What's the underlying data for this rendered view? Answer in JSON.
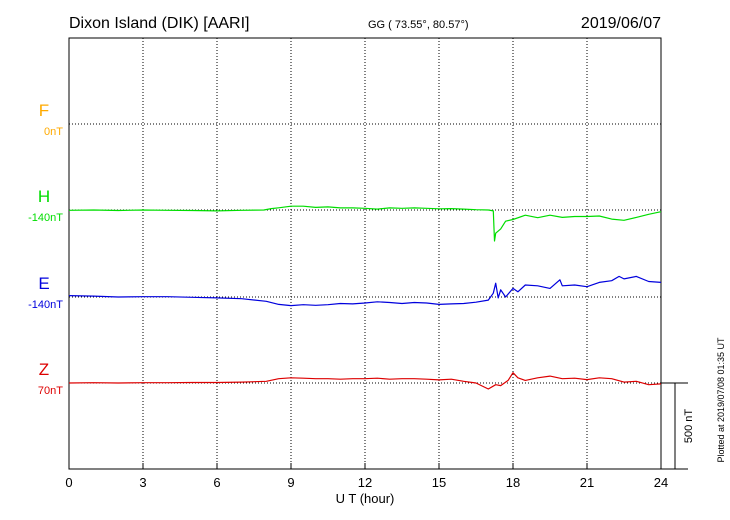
{
  "header": {
    "station": "Dixon Island (DIK)  [AARI]",
    "coords": "GG ( 73.55°,  80.57°)",
    "date": "2019/06/07"
  },
  "plotted_note": "Plotted at 2019/07/08 01:35 UT",
  "scale_label": "500 nT",
  "chart_data": {
    "type": "line",
    "xlabel": "U T (hour)",
    "xlim": [
      0,
      24
    ],
    "xticks": [
      "0",
      "3",
      "6",
      "9",
      "12",
      "15",
      "18",
      "21",
      "24"
    ],
    "scale_bar_nT": 500,
    "series": [
      {
        "name": "F",
        "baseline_label": "0nT",
        "color": "#ffaa00",
        "x": [],
        "y": []
      },
      {
        "name": "H",
        "baseline_label": "-140nT",
        "color": "#00dd00",
        "x": [
          0,
          1,
          2,
          3,
          4,
          5,
          6,
          7,
          7.9,
          8.2,
          8.5,
          9,
          9.5,
          10,
          10.5,
          11,
          11.5,
          12,
          12.5,
          13,
          13.5,
          14,
          14.5,
          15,
          15.5,
          16,
          16.5,
          17,
          17.2,
          17.25,
          17.3,
          17.5,
          17.7,
          18,
          18.5,
          19,
          19.5,
          20,
          20.5,
          21,
          21.5,
          22,
          22.5,
          23,
          23.5,
          24
        ],
        "y": [
          -142,
          -140,
          -143,
          -140,
          -142,
          -143,
          -145,
          -142,
          -140,
          -132,
          -127,
          -118,
          -118,
          -125,
          -122,
          -128,
          -128,
          -130,
          -135,
          -128,
          -130,
          -128,
          -130,
          -133,
          -132,
          -135,
          -138,
          -140,
          -145,
          -320,
          -275,
          -250,
          -205,
          -195,
          -170,
          -185,
          -170,
          -183,
          -178,
          -178,
          -175,
          -193,
          -200,
          -183,
          -165,
          -150
        ]
      },
      {
        "name": "E",
        "baseline_label": "-140nT",
        "color": "#0000dd",
        "x": [
          0,
          1,
          2,
          3,
          4,
          5,
          6,
          7,
          8,
          8.5,
          9,
          9.5,
          10,
          10.5,
          11,
          11.5,
          12,
          12.5,
          13,
          13.5,
          14,
          14.5,
          15,
          15.5,
          16,
          16.5,
          17,
          17.2,
          17.3,
          17.4,
          17.5,
          17.7,
          18,
          18.2,
          18.5,
          19,
          19.5,
          19.9,
          20,
          20.5,
          21,
          21.5,
          22,
          22.3,
          22.5,
          23,
          23.5,
          24
        ],
        "y": [
          -132,
          -135,
          -140,
          -138,
          -138,
          -142,
          -145,
          -150,
          -165,
          -183,
          -190,
          -185,
          -188,
          -185,
          -178,
          -180,
          -175,
          -168,
          -172,
          -178,
          -172,
          -175,
          -183,
          -180,
          -178,
          -170,
          -158,
          -118,
          -60,
          -145,
          -98,
          -140,
          -90,
          -110,
          -70,
          -75,
          -90,
          -40,
          -75,
          -70,
          -80,
          -55,
          -45,
          -20,
          -35,
          -20,
          -50,
          -55
        ]
      },
      {
        "name": "Z",
        "baseline_label": "70nT",
        "color": "#dd0000",
        "x": [
          0,
          1,
          2,
          3,
          4,
          5,
          6,
          7,
          8,
          8.5,
          9,
          9.5,
          10,
          10.5,
          11,
          11.5,
          12,
          12.5,
          13,
          13.5,
          14,
          14.5,
          15,
          15.5,
          16,
          16.5,
          17,
          17.3,
          17.5,
          17.8,
          18,
          18.2,
          18.5,
          19,
          19.5,
          20,
          20.5,
          21,
          21.5,
          22,
          22.5,
          23,
          23.5,
          24
        ],
        "y": [
          70,
          72,
          70,
          72,
          72,
          73,
          73,
          75,
          80,
          95,
          100,
          98,
          95,
          95,
          92,
          95,
          95,
          98,
          92,
          95,
          95,
          92,
          88,
          92,
          80,
          70,
          35,
          60,
          55,
          85,
          130,
          100,
          85,
          100,
          110,
          95,
          98,
          90,
          100,
          95,
          75,
          80,
          60,
          65
        ]
      }
    ]
  }
}
